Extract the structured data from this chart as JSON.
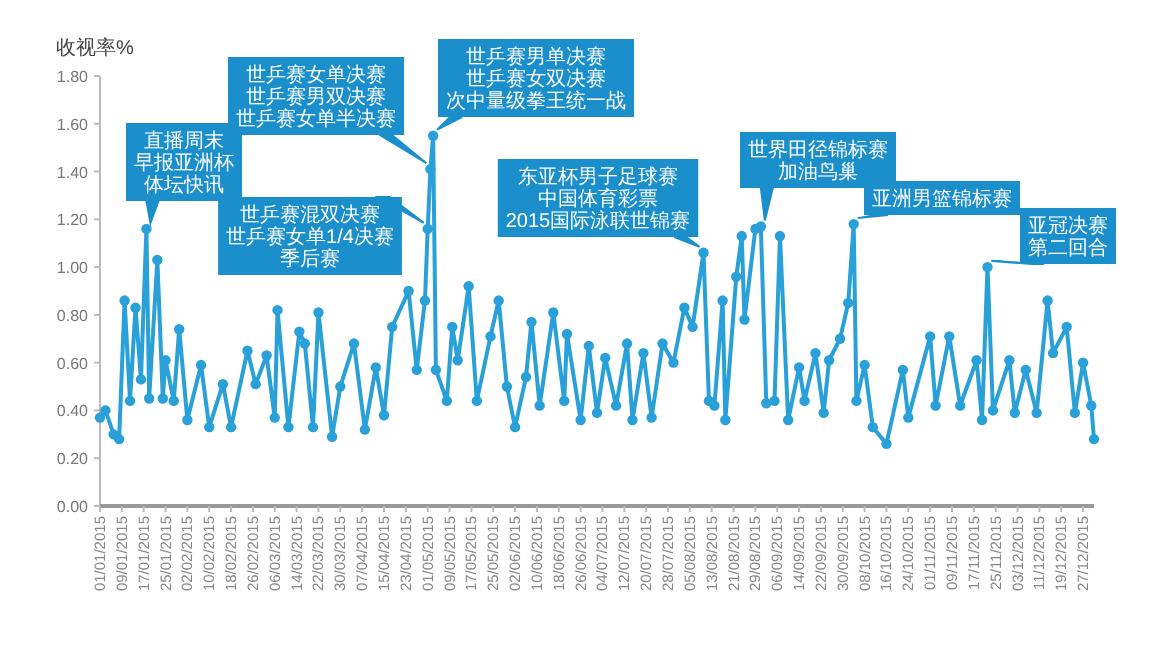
{
  "chart_data": {
    "type": "line",
    "ylabel": "收视率%",
    "marker": "circle",
    "line_style": "solid",
    "grid": false,
    "x": [
      "2015-01-01",
      "2015-01-03",
      "2015-01-06",
      "2015-01-08",
      "2015-01-10",
      "2015-01-12",
      "2015-01-14",
      "2015-01-16",
      "2015-01-18",
      "2015-01-19",
      "2015-01-22",
      "2015-01-24",
      "2015-01-25",
      "2015-01-28",
      "2015-01-30",
      "2015-02-02",
      "2015-02-07",
      "2015-02-10",
      "2015-02-15",
      "2015-02-18",
      "2015-02-24",
      "2015-02-27",
      "2015-03-03",
      "2015-03-06",
      "2015-03-07",
      "2015-03-11",
      "2015-03-15",
      "2015-03-17",
      "2015-03-20",
      "2015-03-22",
      "2015-03-27",
      "2015-03-30",
      "2015-04-04",
      "2015-04-08",
      "2015-04-12",
      "2015-04-15",
      "2015-04-18",
      "2015-04-24",
      "2015-04-27",
      "2015-04-30",
      "2015-05-01",
      "2015-05-02",
      "2015-05-03",
      "2015-05-04",
      "2015-05-08",
      "2015-05-10",
      "2015-05-12",
      "2015-05-16",
      "2015-05-19",
      "2015-05-24",
      "2015-05-27",
      "2015-05-30",
      "2015-06-02",
      "2015-06-06",
      "2015-06-08",
      "2015-06-11",
      "2015-06-16",
      "2015-06-20",
      "2015-06-21",
      "2015-06-26",
      "2015-06-29",
      "2015-07-02",
      "2015-07-05",
      "2015-07-09",
      "2015-07-13",
      "2015-07-15",
      "2015-07-19",
      "2015-07-22",
      "2015-07-26",
      "2015-07-30",
      "2015-08-03",
      "2015-08-06",
      "2015-08-10",
      "2015-08-12",
      "2015-08-14",
      "2015-08-17",
      "2015-08-18",
      "2015-08-22",
      "2015-08-24",
      "2015-08-25",
      "2015-08-29",
      "2015-08-31",
      "2015-09-02",
      "2015-09-05",
      "2015-09-07",
      "2015-09-10",
      "2015-09-14",
      "2015-09-16",
      "2015-09-20",
      "2015-09-23",
      "2015-09-25",
      "2015-09-29",
      "2015-10-02",
      "2015-10-04",
      "2015-10-05",
      "2015-10-08",
      "2015-10-11",
      "2015-10-16",
      "2015-10-22",
      "2015-10-24",
      "2015-11-01",
      "2015-11-03",
      "2015-11-08",
      "2015-11-12",
      "2015-11-18",
      "2015-11-20",
      "2015-11-22",
      "2015-11-24",
      "2015-11-30",
      "2015-12-02",
      "2015-12-06",
      "2015-12-10",
      "2015-12-14",
      "2015-12-16",
      "2015-12-21",
      "2015-12-24",
      "2015-12-27",
      "2015-12-30",
      "2015-12-31"
    ],
    "series": [
      {
        "color": "#2aa0d8",
        "values": [
          0.37,
          0.4,
          0.3,
          0.28,
          0.86,
          0.44,
          0.83,
          0.53,
          1.16,
          0.45,
          1.03,
          0.45,
          0.61,
          0.44,
          0.74,
          0.36,
          0.59,
          0.33,
          0.51,
          0.33,
          0.65,
          0.51,
          0.63,
          0.37,
          0.82,
          0.33,
          0.73,
          0.68,
          0.33,
          0.81,
          0.29,
          0.5,
          0.68,
          0.32,
          0.58,
          0.38,
          0.75,
          0.9,
          0.57,
          0.86,
          1.16,
          1.41,
          1.55,
          0.57,
          0.44,
          0.75,
          0.61,
          0.92,
          0.44,
          0.71,
          0.86,
          0.5,
          0.33,
          0.54,
          0.77,
          0.42,
          0.81,
          0.44,
          0.72,
          0.36,
          0.67,
          0.39,
          0.62,
          0.42,
          0.68,
          0.36,
          0.64,
          0.37,
          0.68,
          0.6,
          0.83,
          0.75,
          1.06,
          0.44,
          0.42,
          0.86,
          0.36,
          0.96,
          1.13,
          0.78,
          1.16,
          1.17,
          0.43,
          0.44,
          1.13,
          0.36,
          0.58,
          0.44,
          0.64,
          0.39,
          0.61,
          0.7,
          0.85,
          1.18,
          0.44,
          0.59,
          0.33,
          0.26,
          0.57,
          0.37,
          0.71,
          0.42,
          0.71,
          0.42,
          0.61,
          0.36,
          1.0,
          0.4,
          0.61,
          0.39,
          0.57,
          0.39,
          0.86,
          0.64,
          0.75,
          0.39,
          0.6,
          0.42,
          0.28
        ]
      }
    ],
    "xlim": [
      "2015-01-01",
      "2015-12-31"
    ],
    "xticks": [
      {
        "value": "2015-01-01",
        "label": "01/01/2015"
      },
      {
        "value": "2015-01-09",
        "label": "09/01/2015"
      },
      {
        "value": "2015-01-17",
        "label": "17/01/2015"
      },
      {
        "value": "2015-01-25",
        "label": "25/01/2015"
      },
      {
        "value": "2015-02-02",
        "label": "02/02/2015"
      },
      {
        "value": "2015-02-10",
        "label": "10/02/2015"
      },
      {
        "value": "2015-02-18",
        "label": "18/02/2015"
      },
      {
        "value": "2015-02-26",
        "label": "26/02/2015"
      },
      {
        "value": "2015-03-06",
        "label": "06/03/2015"
      },
      {
        "value": "2015-03-14",
        "label": "14/03/2015"
      },
      {
        "value": "2015-03-22",
        "label": "22/03/2015"
      },
      {
        "value": "2015-03-30",
        "label": "30/03/2015"
      },
      {
        "value": "2015-04-07",
        "label": "07/04/2015"
      },
      {
        "value": "2015-04-15",
        "label": "15/04/2015"
      },
      {
        "value": "2015-04-23",
        "label": "23/04/2015"
      },
      {
        "value": "2015-05-01",
        "label": "01/05/2015"
      },
      {
        "value": "2015-05-09",
        "label": "09/05/2015"
      },
      {
        "value": "2015-05-17",
        "label": "17/05/2015"
      },
      {
        "value": "2015-05-25",
        "label": "25/05/2015"
      },
      {
        "value": "2015-06-02",
        "label": "02/06/2015"
      },
      {
        "value": "2015-06-10",
        "label": "10/06/2015"
      },
      {
        "value": "2015-06-18",
        "label": "18/06/2015"
      },
      {
        "value": "2015-06-26",
        "label": "26/06/2015"
      },
      {
        "value": "2015-07-04",
        "label": "04/07/2015"
      },
      {
        "value": "2015-07-12",
        "label": "12/07/2015"
      },
      {
        "value": "2015-07-20",
        "label": "20/07/2015"
      },
      {
        "value": "2015-07-28",
        "label": "28/07/2015"
      },
      {
        "value": "2015-08-05",
        "label": "05/08/2015"
      },
      {
        "value": "2015-08-13",
        "label": "13/08/2015"
      },
      {
        "value": "2015-08-21",
        "label": "21/08/2015"
      },
      {
        "value": "2015-08-29",
        "label": "29/08/2015"
      },
      {
        "value": "2015-09-06",
        "label": "06/09/2015"
      },
      {
        "value": "2015-09-14",
        "label": "14/09/2015"
      },
      {
        "value": "2015-09-22",
        "label": "22/09/2015"
      },
      {
        "value": "2015-09-30",
        "label": "30/09/2015"
      },
      {
        "value": "2015-10-08",
        "label": "08/10/2015"
      },
      {
        "value": "2015-10-16",
        "label": "16/10/2015"
      },
      {
        "value": "2015-10-24",
        "label": "24/10/2015"
      },
      {
        "value": "2015-11-01",
        "label": "01/11/2015"
      },
      {
        "value": "2015-11-09",
        "label": "09/11/2015"
      },
      {
        "value": "2015-11-17",
        "label": "17/11/2015"
      },
      {
        "value": "2015-11-25",
        "label": "25/11/2015"
      },
      {
        "value": "2015-12-03",
        "label": "03/12/2015"
      },
      {
        "value": "2015-12-11",
        "label": "11/12/2015"
      },
      {
        "value": "2015-12-19",
        "label": "19/12/2015"
      },
      {
        "value": "2015-12-27",
        "label": "27/12/2015"
      }
    ],
    "ylim": [
      0,
      1.8
    ],
    "yticks": [
      {
        "value": 0,
        "label": "0.00"
      },
      {
        "value": 0.2,
        "label": "0.20"
      },
      {
        "value": 0.4,
        "label": "0.40"
      },
      {
        "value": 0.6,
        "label": "0.60"
      },
      {
        "value": 0.8,
        "label": "0.80"
      },
      {
        "value": 1,
        "label": "1.00"
      },
      {
        "value": 1.2,
        "label": "1.20"
      },
      {
        "value": 1.4,
        "label": "1.40"
      },
      {
        "value": 1.6,
        "label": "1.60"
      },
      {
        "value": 1.8,
        "label": "1.80"
      }
    ],
    "annotations": [
      "直播周末",
      "早报亚洲杯",
      {
        "text": "体坛快讯",
        "x": "2015-01-18",
        "y": 1.16
      },
      "世乒赛女单决赛",
      "世乒赛男双决赛",
      {
        "text": "世乒赛女单半决赛",
        "x": "2015-05-02",
        "y": 1.41
      },
      {
        "text": "世乒赛混双决赛",
        "x": "2015-05-01",
        "y": 1.16
      },
      "世乒赛女单1/4决赛",
      "季后赛",
      "世乒赛男单决赛",
      "世乒赛女双决赛",
      {
        "text": "次中量级拳王统一战",
        "x": "2015-05-03",
        "y": 1.55
      },
      "东亚杯男子足球赛",
      "中国体育彩票",
      {
        "text": "2015国际泳联世锦赛",
        "x": "2015-08-10",
        "y": 1.06
      },
      {
        "text": "世界田径锦标赛",
        "x": "2015-08-31",
        "y": 1.17
      },
      "加油鸟巢",
      {
        "text": "亚洲男篮锦标赛",
        "x": "2015-10-04",
        "y": 1.18
      },
      {
        "text": "亚冠决赛",
        "x": "2015-11-22",
        "y": 1.0
      },
      "第二回合"
    ]
  }
}
